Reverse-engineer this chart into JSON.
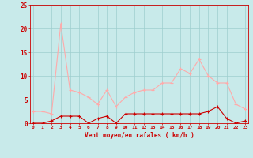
{
  "x": [
    0,
    1,
    2,
    3,
    4,
    5,
    6,
    7,
    8,
    9,
    10,
    11,
    12,
    13,
    14,
    15,
    16,
    17,
    18,
    19,
    20,
    21,
    22,
    23
  ],
  "rafales": [
    2.5,
    2.5,
    2.0,
    21.0,
    7.0,
    6.5,
    5.5,
    4.0,
    7.0,
    3.5,
    5.5,
    6.5,
    7.0,
    7.0,
    8.5,
    8.5,
    11.5,
    10.5,
    13.5,
    10.0,
    8.5,
    8.5,
    4.0,
    3.0
  ],
  "moyen": [
    0.0,
    0.0,
    0.5,
    1.5,
    1.5,
    1.5,
    0.0,
    1.0,
    1.5,
    0.0,
    2.0,
    2.0,
    2.0,
    2.0,
    2.0,
    2.0,
    2.0,
    2.0,
    2.0,
    2.5,
    3.5,
    1.0,
    0.0,
    0.5
  ],
  "bg_color": "#c8eaea",
  "grid_color": "#9ecece",
  "line_color_rafales": "#ffaaaa",
  "line_color_moyen": "#cc0000",
  "xlabel": "Vent moyen/en rafales ( km/h )",
  "ylim": [
    0,
    25
  ],
  "yticks": [
    0,
    5,
    10,
    15,
    20,
    25
  ],
  "tick_color": "#cc0000"
}
